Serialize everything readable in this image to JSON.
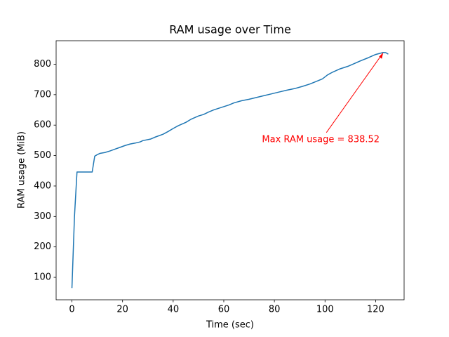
{
  "chart_data": {
    "type": "line",
    "title": "RAM usage over Time",
    "x_label": "Time (sec)",
    "y_label": "RAM usage (MiB)",
    "x": [
      0,
      1,
      2,
      4,
      6,
      8,
      9,
      10,
      11,
      13,
      15,
      17,
      19,
      21,
      23,
      25,
      27,
      28,
      31,
      33,
      36,
      38,
      40,
      42,
      45,
      47,
      50,
      52,
      54,
      56,
      59,
      62,
      64,
      67,
      70,
      73,
      76,
      79,
      82,
      85,
      88,
      91,
      94,
      97,
      99,
      101,
      103,
      106,
      109,
      111,
      114,
      117,
      120,
      123,
      124,
      125
    ],
    "values": [
      65,
      300,
      446,
      446,
      446,
      446,
      498,
      503,
      507,
      510,
      515,
      521,
      527,
      533,
      538,
      541,
      545,
      549,
      554,
      561,
      570,
      579,
      589,
      598,
      609,
      619,
      630,
      635,
      643,
      650,
      658,
      666,
      673,
      680,
      685,
      691,
      697,
      703,
      709,
      715,
      720,
      727,
      735,
      745,
      752,
      765,
      774,
      785,
      793,
      800,
      811,
      821,
      832,
      838.52,
      838,
      833
    ],
    "color": "#1f77b4",
    "xlim": [
      -6.25,
      131.25
    ],
    "xticks": [
      0,
      20,
      40,
      60,
      80,
      100,
      120
    ],
    "ylim": [
      26.3,
      877.2
    ],
    "yticks": [
      100,
      200,
      300,
      400,
      500,
      600,
      700,
      800
    ],
    "annotation": {
      "text": "Max RAM usage = 838.52",
      "x": 123,
      "y": 838.52,
      "color": "#ff0000"
    }
  }
}
